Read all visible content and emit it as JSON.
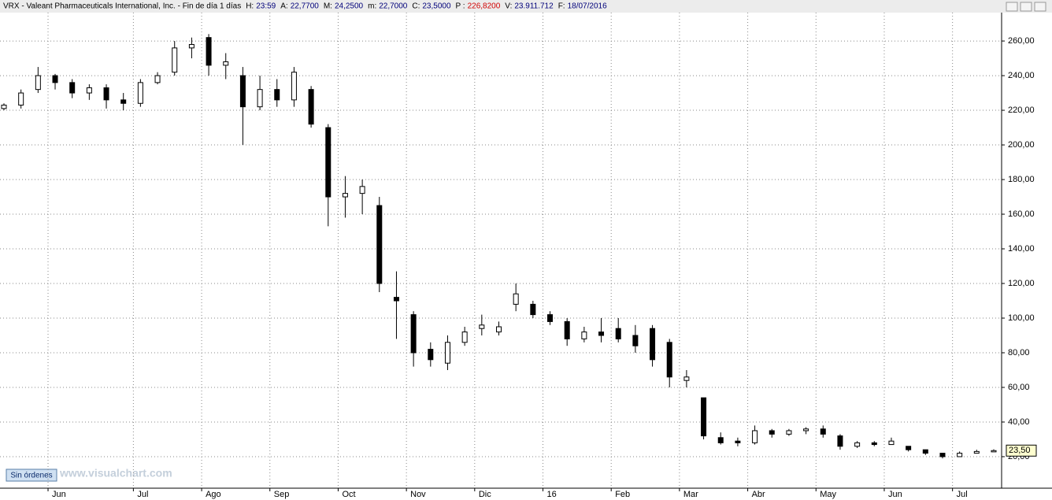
{
  "header": {
    "symbol": "VRX - Valeant Pharmaceuticals International, Inc. - Fin de día 1 días",
    "fields": [
      {
        "label": "H:",
        "value": "23:59"
      },
      {
        "label": "A:",
        "value": "22,7700"
      },
      {
        "label": "M:",
        "value": "24,2500"
      },
      {
        "label": "m:",
        "value": "22,7000"
      },
      {
        "label": "C:",
        "value": "23,5000"
      },
      {
        "label": "P :",
        "value": "226,8200"
      },
      {
        "label": "V:",
        "value": "23.911.712"
      },
      {
        "label": "F:",
        "value": "18/07/2016"
      }
    ]
  },
  "footer": {
    "button": "Sin órdenes",
    "watermark": "www.visualchart.com"
  },
  "chart_data": {
    "type": "candlestick",
    "categories": [
      null,
      null,
      null,
      "Jun",
      null,
      null,
      null,
      null,
      "Jul",
      null,
      null,
      null,
      "Ago",
      null,
      null,
      null,
      "Sep",
      null,
      null,
      null,
      "Oct",
      null,
      null,
      null,
      "Nov",
      null,
      null,
      null,
      "Dic",
      null,
      null,
      null,
      "16",
      null,
      null,
      null,
      "Feb",
      null,
      null,
      null,
      "Mar",
      null,
      null,
      null,
      "Abr",
      null,
      null,
      null,
      "May",
      null,
      null,
      null,
      "Jun",
      null,
      null,
      null,
      "Jul",
      null,
      null
    ],
    "open": [
      221,
      223,
      232,
      240,
      236,
      230,
      233,
      226,
      224,
      236,
      242,
      256,
      262,
      246,
      240,
      222,
      232,
      226,
      232,
      210,
      170,
      172,
      165,
      112,
      102,
      82,
      74,
      86,
      94,
      92,
      108,
      108,
      102,
      98,
      88,
      92,
      94,
      90,
      94,
      86,
      64,
      54,
      31,
      29,
      28,
      35,
      33,
      35,
      36,
      32,
      26,
      28,
      27,
      26,
      24,
      22,
      20,
      22,
      22.77
    ],
    "high": [
      224,
      232,
      245,
      241,
      238,
      235,
      235,
      230,
      238,
      242,
      260,
      262,
      264,
      253,
      245,
      240,
      238,
      245,
      234,
      212,
      182,
      180,
      170,
      127,
      104,
      86,
      90,
      95,
      102,
      98,
      120,
      110,
      104,
      100,
      95,
      100,
      100,
      96,
      96,
      88,
      70,
      54,
      34,
      31,
      38,
      36,
      36,
      37,
      38,
      33,
      29,
      29,
      31,
      26,
      24,
      22,
      23,
      24,
      24.25
    ],
    "low": [
      220,
      221,
      230,
      232,
      227,
      226,
      221,
      220,
      222,
      235,
      240,
      250,
      240,
      238,
      200,
      220,
      222,
      222,
      210,
      153,
      158,
      160,
      115,
      88,
      72,
      72,
      70,
      84,
      90,
      90,
      104,
      100,
      96,
      84,
      86,
      86,
      86,
      80,
      72,
      60,
      60,
      30,
      27,
      26,
      27,
      31,
      32,
      33,
      31,
      24,
      25,
      26,
      27,
      23,
      21,
      19,
      20,
      22,
      22.7
    ],
    "close": [
      223,
      230,
      240,
      236,
      230,
      233,
      226,
      224,
      236,
      240,
      256,
      258,
      246,
      248,
      222,
      232,
      226,
      242,
      212,
      170,
      172,
      176,
      120,
      110,
      80,
      76,
      86,
      92,
      96,
      95,
      114,
      102,
      98,
      88,
      92,
      90,
      88,
      84,
      76,
      66,
      66,
      32,
      28,
      28,
      35,
      33,
      35,
      36,
      33,
      26,
      28,
      27,
      29,
      24,
      22,
      20,
      22,
      23,
      23.5
    ],
    "ylim": [
      1.8,
      276.4
    ],
    "yticks": [
      {
        "value": 20,
        "label": "20,00"
      },
      {
        "value": 40,
        "label": "40,00"
      },
      {
        "value": 60,
        "label": "60,00"
      },
      {
        "value": 80,
        "label": "80,00"
      },
      {
        "value": 100,
        "label": "100,00"
      },
      {
        "value": 120,
        "label": "120,00"
      },
      {
        "value": 140,
        "label": "140,00"
      },
      {
        "value": 160,
        "label": "160,00"
      },
      {
        "value": 180,
        "label": "180,00"
      },
      {
        "value": 200,
        "label": "200,00"
      },
      {
        "value": 220,
        "label": "220,00"
      },
      {
        "value": 240,
        "label": "240,00"
      },
      {
        "value": 260,
        "label": "260,00"
      }
    ],
    "last_price": {
      "value": 23.5,
      "label": "23,50"
    },
    "grid": true,
    "color": "#000000"
  }
}
